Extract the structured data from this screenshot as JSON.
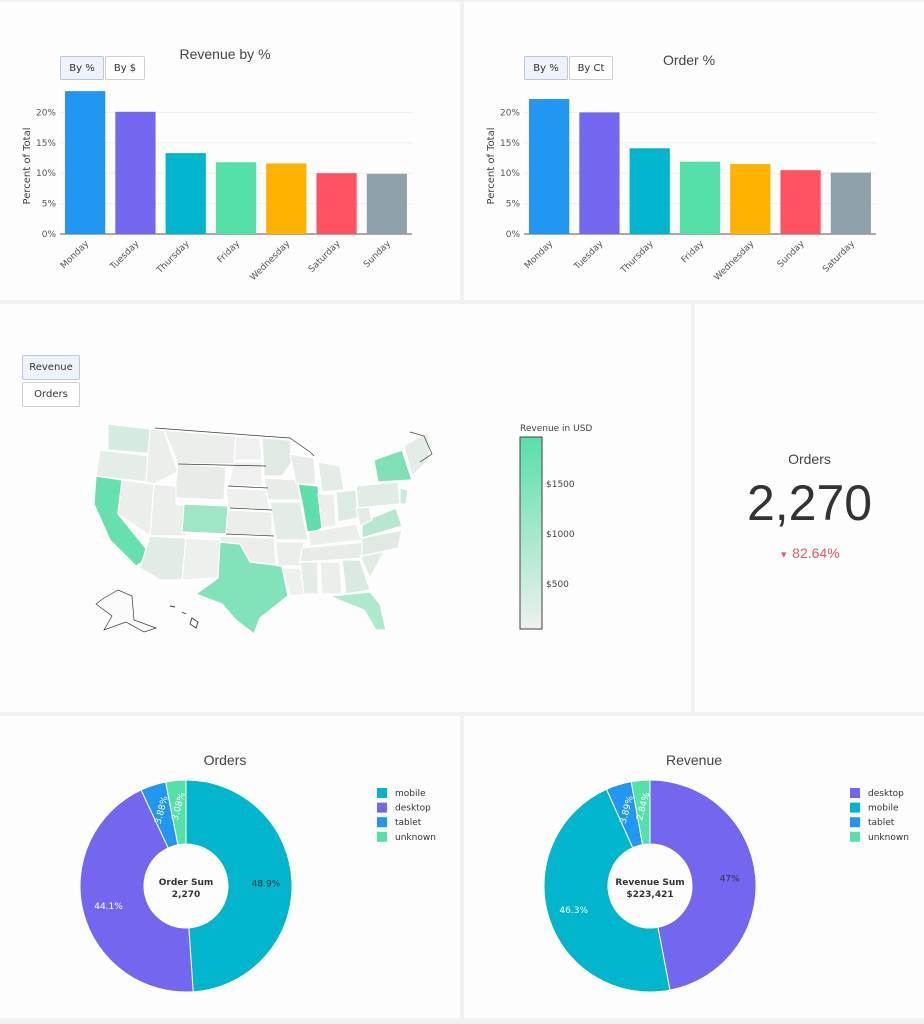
{
  "panels": {
    "revenue_by_day": {
      "title": "Revenue by %",
      "buttons": [
        {
          "label": "By %",
          "active": true
        },
        {
          "label": "By $",
          "active": false
        }
      ]
    },
    "orders_by_day": {
      "title": "Order %",
      "buttons": [
        {
          "label": "By %",
          "active": true
        },
        {
          "label": "By Ct",
          "active": false
        }
      ]
    },
    "map": {
      "buttons": [
        {
          "label": "Revenue",
          "active": true
        },
        {
          "label": "Orders",
          "active": false
        }
      ],
      "colorbar": {
        "title": "Revenue in USD",
        "ticks": [
          "$1500",
          "$1000",
          "$500"
        ]
      }
    },
    "kpi": {
      "title": "Orders",
      "value": "2,270",
      "delta": "82.64%",
      "delta_direction": "down",
      "delta_color": "#e8566a"
    },
    "orders_donut": {
      "title": "Orders",
      "center_label": "Order Sum",
      "center_value": "2,270"
    },
    "revenue_donut": {
      "title": "Revenue",
      "center_label": "Revenue Sum",
      "center_value": "$223,421"
    }
  },
  "chart_data": [
    {
      "type": "bar",
      "title": "Revenue by %",
      "ylabel": "Percent of Total",
      "xlabel": "",
      "ylim": [
        0,
        25
      ],
      "y_ticks": [
        "0%",
        "5%",
        "10%",
        "15%",
        "20%"
      ],
      "categories": [
        "Monday",
        "Tuesday",
        "Thursday",
        "Friday",
        "Wednesday",
        "Saturday",
        "Sunday"
      ],
      "values": [
        23.5,
        20.1,
        13.3,
        11.8,
        11.6,
        10.0,
        9.9
      ],
      "colors": [
        "#2196f3",
        "#7367f0",
        "#00b5cc",
        "#55e0a8",
        "#ffb300",
        "#ff5263",
        "#8fa1ab"
      ],
      "grid": true
    },
    {
      "type": "bar",
      "title": "Order %",
      "ylabel": "Percent of Total",
      "xlabel": "",
      "ylim": [
        0,
        25
      ],
      "y_ticks": [
        "0%",
        "5%",
        "10%",
        "15%",
        "20%"
      ],
      "categories": [
        "Monday",
        "Tuesday",
        "Thursday",
        "Friday",
        "Wednesday",
        "Sunday",
        "Saturday"
      ],
      "values": [
        22.2,
        20.0,
        14.1,
        11.9,
        11.5,
        10.5,
        10.1
      ],
      "colors": [
        "#2196f3",
        "#7367f0",
        "#00b5cc",
        "#55e0a8",
        "#ffb300",
        "#ff5263",
        "#8fa1ab"
      ],
      "grid": true
    },
    {
      "type": "pie",
      "title": "Orders",
      "labels": [
        "mobile",
        "desktop",
        "tablet",
        "unknown"
      ],
      "values": [
        48.9,
        44.1,
        3.88,
        3.08
      ],
      "value_labels": [
        "48.9%",
        "44.1%",
        "3.88%",
        "3.08%"
      ],
      "colors": [
        "#00b5cc",
        "#7367f0",
        "#2196f3",
        "#55e0a8"
      ],
      "legend_position": "right"
    },
    {
      "type": "pie",
      "title": "Revenue",
      "labels": [
        "desktop",
        "mobile",
        "tablet",
        "unknown"
      ],
      "values": [
        47.0,
        46.3,
        3.89,
        2.84
      ],
      "value_labels": [
        "47%",
        "46.3%",
        "3.89%",
        "2.84%"
      ],
      "colors": [
        "#7367f0",
        "#00b5cc",
        "#2196f3",
        "#55e0a8"
      ],
      "legend_position": "right"
    }
  ]
}
